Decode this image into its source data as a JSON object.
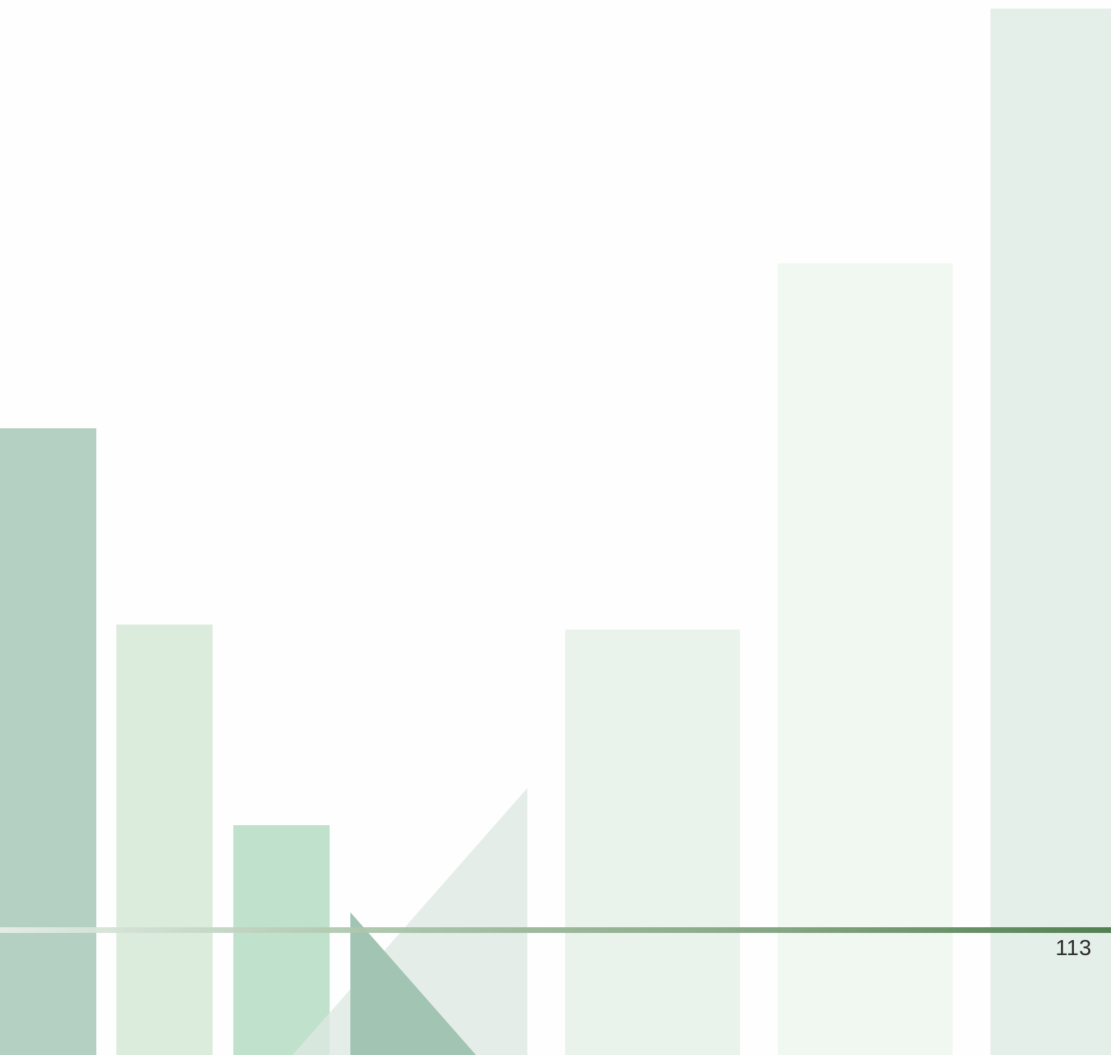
{
  "footer": {
    "page_number": "113"
  },
  "colors": {
    "background": "#fefefe",
    "bar_dark": "#b3d0c3",
    "bar_light": "#dcecdc",
    "bar_mint": "#c0e2cc",
    "bar_pale_1": "#e9f3eb",
    "bar_pale_2": "#f1f7f1",
    "bar_pale_3": "#e5efe9",
    "triangle_light": "#e4eee8",
    "triangle_dark": "#a2c4b2",
    "rule_line_start": "#e3ebe5",
    "rule_line_end": "#4a7a49",
    "page_number_text": "#2b2b2b"
  }
}
